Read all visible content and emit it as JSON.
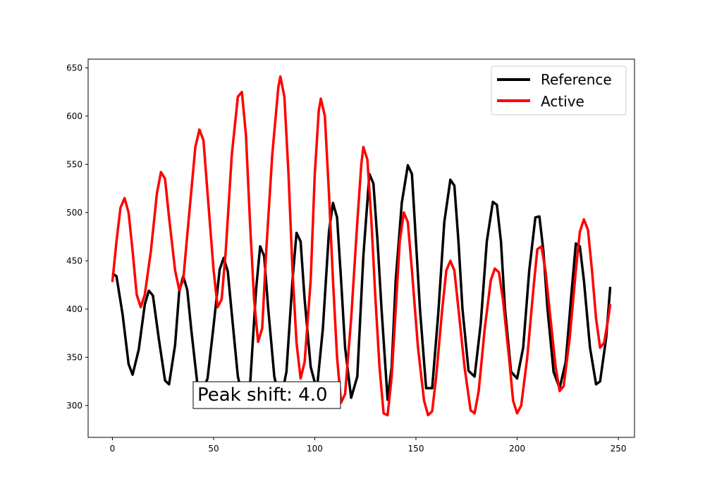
{
  "chart_data": {
    "type": "line",
    "xlim": [
      -12,
      258
    ],
    "ylim": [
      267,
      659
    ],
    "xticks": [
      0,
      50,
      100,
      150,
      200,
      250
    ],
    "yticks": [
      300,
      350,
      400,
      450,
      500,
      550,
      600,
      650
    ],
    "grid": false,
    "legend_position": "top-right",
    "series": [
      {
        "name": "Reference",
        "color": "#000000",
        "points": [
          [
            0,
            437
          ],
          [
            2,
            434
          ],
          [
            5,
            395
          ],
          [
            8,
            343
          ],
          [
            10,
            332
          ],
          [
            13,
            358
          ],
          [
            16,
            405
          ],
          [
            18,
            419
          ],
          [
            20,
            414
          ],
          [
            23,
            368
          ],
          [
            26,
            326
          ],
          [
            28,
            322
          ],
          [
            31,
            363
          ],
          [
            33,
            418
          ],
          [
            35,
            434
          ],
          [
            37,
            420
          ],
          [
            39,
            378
          ],
          [
            42,
            322
          ],
          [
            44,
            313
          ],
          [
            47,
            328
          ],
          [
            50,
            383
          ],
          [
            53,
            441
          ],
          [
            55,
            453
          ],
          [
            57,
            439
          ],
          [
            59,
            395
          ],
          [
            62,
            330
          ],
          [
            65,
            303
          ],
          [
            68,
            320
          ],
          [
            71,
            420
          ],
          [
            73,
            465
          ],
          [
            75,
            455
          ],
          [
            77,
            400
          ],
          [
            80,
            330
          ],
          [
            83,
            303
          ],
          [
            86,
            335
          ],
          [
            89,
            430
          ],
          [
            91,
            479
          ],
          [
            93,
            470
          ],
          [
            95,
            410
          ],
          [
            98,
            340
          ],
          [
            101,
            316
          ],
          [
            104,
            380
          ],
          [
            107,
            480
          ],
          [
            109,
            510
          ],
          [
            111,
            495
          ],
          [
            113,
            430
          ],
          [
            115,
            360
          ],
          [
            118,
            308
          ],
          [
            121,
            330
          ],
          [
            124,
            455
          ],
          [
            127,
            540
          ],
          [
            129,
            530
          ],
          [
            131,
            470
          ],
          [
            133,
            400
          ],
          [
            136,
            306
          ],
          [
            138,
            340
          ],
          [
            140,
            430
          ],
          [
            143,
            510
          ],
          [
            146,
            549
          ],
          [
            148,
            540
          ],
          [
            150,
            470
          ],
          [
            152,
            400
          ],
          [
            155,
            318
          ],
          [
            158,
            318
          ],
          [
            161,
            395
          ],
          [
            164,
            490
          ],
          [
            167,
            534
          ],
          [
            169,
            528
          ],
          [
            171,
            470
          ],
          [
            173,
            400
          ],
          [
            176,
            336
          ],
          [
            179,
            330
          ],
          [
            182,
            385
          ],
          [
            185,
            470
          ],
          [
            188,
            511
          ],
          [
            190,
            508
          ],
          [
            192,
            470
          ],
          [
            194,
            400
          ],
          [
            197,
            335
          ],
          [
            200,
            328
          ],
          [
            203,
            360
          ],
          [
            206,
            440
          ],
          [
            209,
            495
          ],
          [
            211,
            496
          ],
          [
            213,
            460
          ],
          [
            215,
            400
          ],
          [
            218,
            335
          ],
          [
            221,
            318
          ],
          [
            224,
            345
          ],
          [
            227,
            420
          ],
          [
            229,
            468
          ],
          [
            231,
            465
          ],
          [
            233,
            430
          ],
          [
            236,
            360
          ],
          [
            239,
            322
          ],
          [
            241,
            325
          ],
          [
            244,
            370
          ],
          [
            246,
            423
          ]
        ]
      },
      {
        "name": "Active",
        "color": "#ff0000",
        "points": [
          [
            0,
            428
          ],
          [
            2,
            470
          ],
          [
            4,
            505
          ],
          [
            6,
            515
          ],
          [
            8,
            500
          ],
          [
            10,
            460
          ],
          [
            12,
            415
          ],
          [
            14,
            402
          ],
          [
            16,
            415
          ],
          [
            19,
            460
          ],
          [
            22,
            520
          ],
          [
            24,
            542
          ],
          [
            26,
            535
          ],
          [
            28,
            495
          ],
          [
            31,
            440
          ],
          [
            33,
            420
          ],
          [
            35,
            430
          ],
          [
            38,
            500
          ],
          [
            41,
            568
          ],
          [
            43,
            586
          ],
          [
            45,
            575
          ],
          [
            47,
            520
          ],
          [
            50,
            440
          ],
          [
            52,
            402
          ],
          [
            54,
            410
          ],
          [
            56,
            460
          ],
          [
            59,
            560
          ],
          [
            62,
            620
          ],
          [
            64,
            625
          ],
          [
            66,
            580
          ],
          [
            68,
            490
          ],
          [
            70,
            410
          ],
          [
            72,
            366
          ],
          [
            74,
            380
          ],
          [
            76,
            460
          ],
          [
            79,
            560
          ],
          [
            82,
            630
          ],
          [
            83,
            641
          ],
          [
            85,
            620
          ],
          [
            87,
            540
          ],
          [
            89,
            440
          ],
          [
            91,
            365
          ],
          [
            93,
            328
          ],
          [
            95,
            345
          ],
          [
            98,
            430
          ],
          [
            100,
            540
          ],
          [
            102,
            606
          ],
          [
            103,
            618
          ],
          [
            105,
            600
          ],
          [
            107,
            520
          ],
          [
            109,
            430
          ],
          [
            111,
            350
          ],
          [
            113,
            303
          ],
          [
            115,
            312
          ],
          [
            118,
            390
          ],
          [
            121,
            490
          ],
          [
            123,
            550
          ],
          [
            124,
            568
          ],
          [
            126,
            555
          ],
          [
            128,
            490
          ],
          [
            130,
            410
          ],
          [
            132,
            340
          ],
          [
            134,
            292
          ],
          [
            136,
            290
          ],
          [
            138,
            330
          ],
          [
            140,
            400
          ],
          [
            142,
            470
          ],
          [
            144,
            500
          ],
          [
            146,
            490
          ],
          [
            148,
            440
          ],
          [
            151,
            360
          ],
          [
            154,
            305
          ],
          [
            156,
            290
          ],
          [
            158,
            294
          ],
          [
            160,
            330
          ],
          [
            163,
            400
          ],
          [
            165,
            440
          ],
          [
            167,
            450
          ],
          [
            169,
            440
          ],
          [
            171,
            400
          ],
          [
            174,
            340
          ],
          [
            177,
            295
          ],
          [
            179,
            292
          ],
          [
            181,
            315
          ],
          [
            184,
            380
          ],
          [
            187,
            430
          ],
          [
            189,
            442
          ],
          [
            191,
            438
          ],
          [
            193,
            410
          ],
          [
            196,
            350
          ],
          [
            198,
            305
          ],
          [
            200,
            292
          ],
          [
            202,
            300
          ],
          [
            205,
            350
          ],
          [
            208,
            420
          ],
          [
            210,
            462
          ],
          [
            212,
            465
          ],
          [
            214,
            440
          ],
          [
            217,
            380
          ],
          [
            219,
            340
          ],
          [
            221,
            315
          ],
          [
            223,
            320
          ],
          [
            226,
            370
          ],
          [
            229,
            440
          ],
          [
            231,
            480
          ],
          [
            233,
            493
          ],
          [
            235,
            482
          ],
          [
            237,
            440
          ],
          [
            239,
            390
          ],
          [
            241,
            360
          ],
          [
            243,
            365
          ],
          [
            245,
            390
          ],
          [
            246,
            405
          ]
        ]
      }
    ],
    "annotation": "Peak shift: 4.0"
  }
}
